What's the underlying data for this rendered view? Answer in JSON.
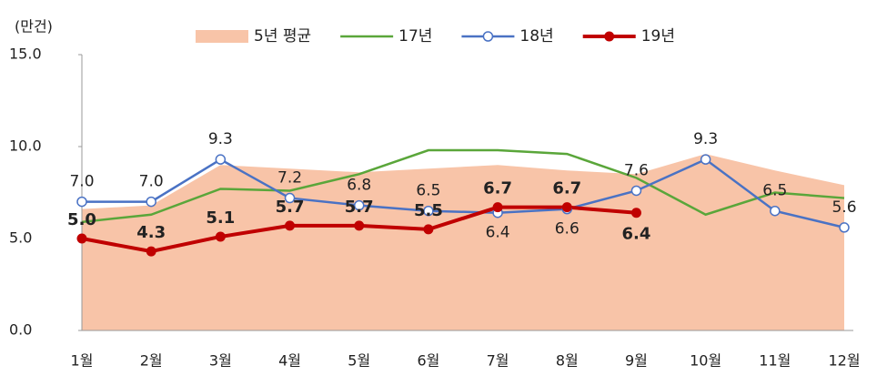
{
  "chart_data": {
    "type": "line",
    "y_label": "(만건)",
    "categories": [
      "1월",
      "2월",
      "3월",
      "4월",
      "5월",
      "6월",
      "7월",
      "8월",
      "9월",
      "10월",
      "11월",
      "12월"
    ],
    "ylim": [
      0,
      15
    ],
    "yticks": [
      {
        "value": 0,
        "label": "0.0"
      },
      {
        "value": 5,
        "label": "5.0"
      },
      {
        "value": 10,
        "label": "10.0"
      },
      {
        "value": 15,
        "label": "15.0"
      }
    ],
    "series": [
      {
        "name": "5년 평균",
        "type": "area",
        "color": "#f8c4a8",
        "values": [
          6.6,
          6.8,
          9.0,
          8.8,
          8.6,
          8.8,
          9.0,
          8.7,
          8.5,
          9.6,
          8.7,
          7.9
        ]
      },
      {
        "name": "17년",
        "type": "line",
        "color": "#5aa63a",
        "values": [
          5.9,
          6.3,
          7.7,
          7.6,
          8.5,
          9.8,
          9.8,
          9.6,
          8.3,
          6.3,
          7.5,
          7.2
        ]
      },
      {
        "name": "18년",
        "type": "line",
        "color": "#4a72c4",
        "marker": "open",
        "values": [
          7.0,
          7.0,
          9.3,
          7.2,
          6.8,
          6.5,
          6.4,
          6.6,
          7.6,
          9.3,
          6.5,
          5.6
        ],
        "value_labels": [
          "7.0",
          "7.0",
          "9.3",
          "7.2",
          "6.8",
          "6.5",
          "6.4",
          "6.6",
          "7.6",
          "9.3",
          "6.5",
          "5.6"
        ]
      },
      {
        "name": "19년",
        "type": "line",
        "color": "#c00000",
        "marker": "filled",
        "values": [
          5.0,
          4.3,
          5.1,
          5.7,
          5.7,
          5.5,
          6.7,
          6.7,
          6.4,
          null,
          null,
          null
        ],
        "value_labels": [
          "5.0",
          "4.3",
          "5.1",
          "5.7",
          "5.7",
          "5.5",
          "6.7",
          "6.7",
          "6.4",
          null,
          null,
          null
        ]
      }
    ]
  }
}
